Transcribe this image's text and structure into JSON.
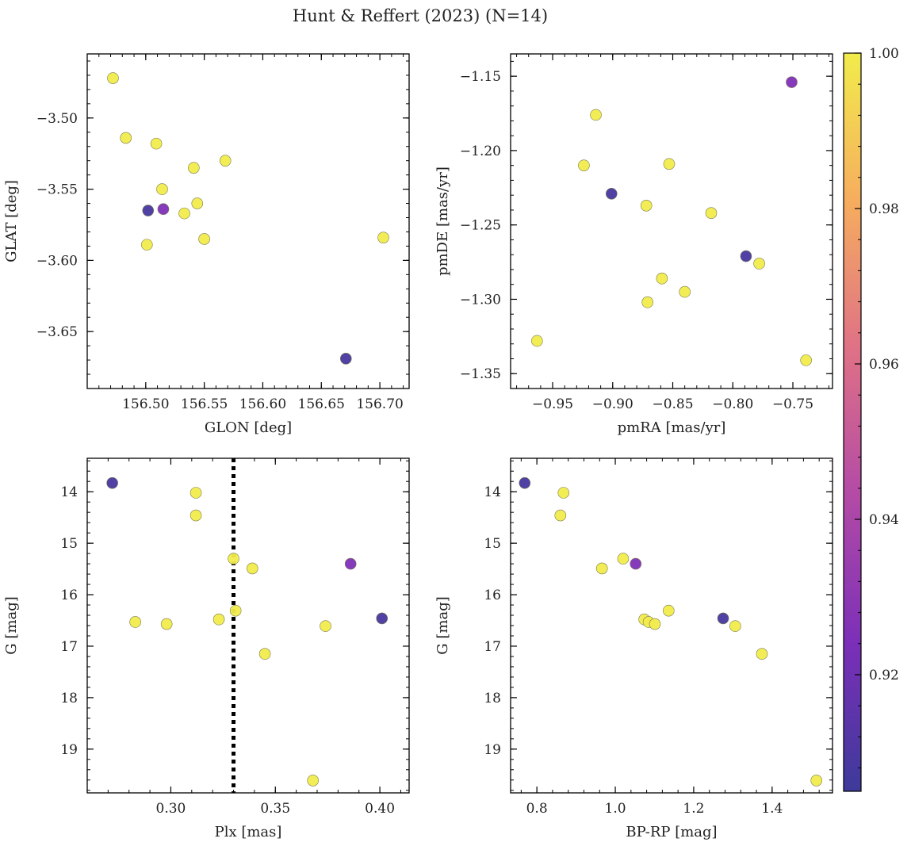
{
  "figure": {
    "suptitle": "Hunt & Reffert (2023) (N=14)"
  },
  "colormap": {
    "name": "plasma",
    "range": [
      0.905,
      1.0
    ],
    "ticks": [
      "1.00",
      "0.98",
      "0.96",
      "0.94",
      "0.92"
    ],
    "tick_values": [
      1.0,
      0.98,
      0.96,
      0.94,
      0.92
    ],
    "stops": [
      "#3d3a9a",
      "#7b2fb8",
      "#b34aa6",
      "#df7186",
      "#f6ad5e",
      "#f2ec4c"
    ]
  },
  "chart_data": [
    {
      "type": "scatter",
      "name": "sky-position",
      "xlabel": "GLON [deg]",
      "ylabel": "GLAT [deg]",
      "xlim": [
        156.45,
        156.725
      ],
      "ylim": [
        -3.69,
        -3.455
      ],
      "xticks": [
        156.5,
        156.55,
        156.6,
        156.65,
        156.7
      ],
      "xtick_labels": [
        "156.50",
        "156.55",
        "156.60",
        "156.65",
        "156.70"
      ],
      "yticks": [
        -3.5,
        -3.55,
        -3.6,
        -3.65
      ],
      "ytick_labels": [
        "−3.50",
        "−3.55",
        "−3.60",
        "−3.65"
      ],
      "x": [
        156.472,
        156.483,
        156.509,
        156.514,
        156.541,
        156.568,
        156.544,
        156.533,
        156.55,
        156.501,
        156.703,
        156.502,
        156.515,
        156.671
      ],
      "y": [
        -3.472,
        -3.514,
        -3.518,
        -3.55,
        -3.535,
        -3.53,
        -3.56,
        -3.567,
        -3.585,
        -3.589,
        -3.584,
        -3.565,
        -3.564,
        -3.669
      ],
      "c": [
        1.0,
        1.0,
        1.0,
        1.0,
        1.0,
        1.0,
        1.0,
        1.0,
        1.0,
        1.0,
        1.0,
        0.908,
        0.925,
        0.908
      ]
    },
    {
      "type": "scatter",
      "name": "proper-motion",
      "xlabel": "pmRA [mas/yr]",
      "ylabel": "pmDE [mas/yr]",
      "xlim": [
        -0.985,
        -0.717
      ],
      "ylim": [
        -1.36,
        -1.135
      ],
      "xticks": [
        -0.95,
        -0.9,
        -0.85,
        -0.8,
        -0.75
      ],
      "xtick_labels": [
        "−0.95",
        "−0.90",
        "−0.85",
        "−0.80",
        "−0.75"
      ],
      "yticks": [
        -1.15,
        -1.2,
        -1.25,
        -1.3,
        -1.35
      ],
      "ytick_labels": [
        "−1.15",
        "−1.20",
        "−1.25",
        "−1.30",
        "−1.35"
      ],
      "x": [
        -0.914,
        -0.924,
        -0.853,
        -0.872,
        -0.818,
        -0.778,
        -0.859,
        -0.871,
        -0.84,
        -0.963,
        -0.739,
        -0.901,
        -0.789,
        -0.751
      ],
      "y": [
        -1.176,
        -1.21,
        -1.209,
        -1.237,
        -1.242,
        -1.276,
        -1.286,
        -1.302,
        -1.295,
        -1.328,
        -1.341,
        -1.229,
        -1.271,
        -1.154
      ],
      "c": [
        1.0,
        1.0,
        1.0,
        1.0,
        1.0,
        1.0,
        1.0,
        1.0,
        1.0,
        1.0,
        1.0,
        0.908,
        0.908,
        0.925
      ]
    },
    {
      "type": "scatter",
      "name": "parallax-magnitude",
      "xlabel": "Plx [mas]",
      "ylabel": "G [mag]",
      "xlim": [
        0.26,
        0.414
      ],
      "ylim": [
        19.85,
        13.35
      ],
      "y_inverted": true,
      "xticks": [
        0.3,
        0.35,
        0.4
      ],
      "xtick_labels": [
        "0.30",
        "0.35",
        "0.40"
      ],
      "yticks": [
        14,
        15,
        16,
        17,
        18,
        19
      ],
      "ytick_labels": [
        "14",
        "15",
        "16",
        "17",
        "18",
        "19"
      ],
      "vline": 0.33,
      "x": [
        0.312,
        0.312,
        0.33,
        0.339,
        0.283,
        0.298,
        0.323,
        0.331,
        0.345,
        0.374,
        0.368,
        0.272,
        0.386,
        0.401
      ],
      "y": [
        14.02,
        14.46,
        15.3,
        15.49,
        16.53,
        16.57,
        16.48,
        16.31,
        17.15,
        16.61,
        19.61,
        13.83,
        15.4,
        16.46
      ],
      "c": [
        1.0,
        1.0,
        1.0,
        1.0,
        1.0,
        1.0,
        1.0,
        1.0,
        1.0,
        1.0,
        1.0,
        0.908,
        0.925,
        0.908
      ]
    },
    {
      "type": "scatter",
      "name": "color-magnitude",
      "xlabel": "BP-RP [mag]",
      "ylabel": "G [mag]",
      "xlim": [
        0.733,
        1.554
      ],
      "ylim": [
        19.85,
        13.35
      ],
      "y_inverted": true,
      "xticks": [
        0.8,
        1.0,
        1.2,
        1.4
      ],
      "xtick_labels": [
        "0.8",
        "1.0",
        "1.2",
        "1.4"
      ],
      "yticks": [
        14,
        15,
        16,
        17,
        18,
        19
      ],
      "ytick_labels": [
        "14",
        "15",
        "16",
        "17",
        "18",
        "19"
      ],
      "x": [
        0.868,
        0.86,
        1.02,
        0.966,
        1.074,
        1.085,
        1.101,
        1.136,
        1.306,
        1.374,
        1.513,
        0.769,
        1.052,
        1.275
      ],
      "y": [
        14.02,
        14.46,
        15.3,
        15.49,
        16.48,
        16.53,
        16.57,
        16.31,
        16.61,
        17.15,
        19.61,
        13.83,
        15.4,
        16.46
      ],
      "c": [
        1.0,
        1.0,
        1.0,
        1.0,
        1.0,
        1.0,
        1.0,
        1.0,
        1.0,
        1.0,
        1.0,
        0.908,
        0.925,
        0.908
      ]
    }
  ]
}
